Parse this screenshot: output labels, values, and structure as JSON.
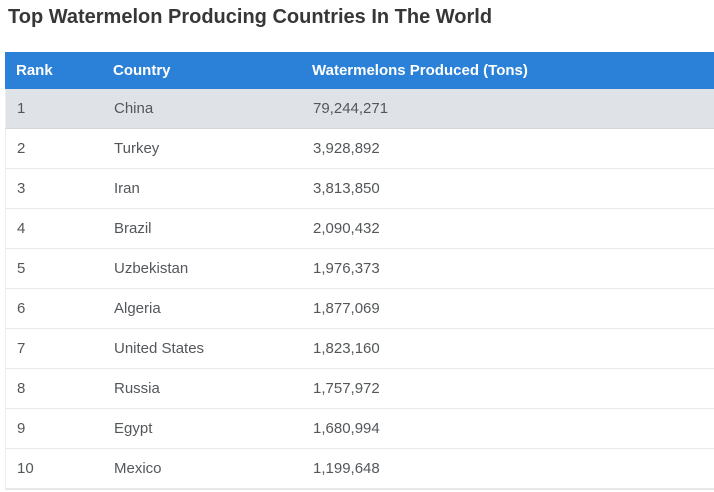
{
  "page": {
    "title": "Top Watermelon Producing Countries In The World"
  },
  "table": {
    "columns": [
      "Rank",
      "Country",
      "Watermelons Produced (Tons)"
    ],
    "rows": [
      {
        "rank": "1",
        "country": "China",
        "produced": "79,244,271",
        "highlighted": true
      },
      {
        "rank": "2",
        "country": "Turkey",
        "produced": "3,928,892",
        "highlighted": false
      },
      {
        "rank": "3",
        "country": "Iran",
        "produced": "3,813,850",
        "highlighted": false
      },
      {
        "rank": "4",
        "country": "Brazil",
        "produced": "2,090,432",
        "highlighted": false
      },
      {
        "rank": "5",
        "country": "Uzbekistan",
        "produced": "1,976,373",
        "highlighted": false
      },
      {
        "rank": "6",
        "country": "Algeria",
        "produced": "1,877,069",
        "highlighted": false
      },
      {
        "rank": "7",
        "country": "United States",
        "produced": "1,823,160",
        "highlighted": false
      },
      {
        "rank": "8",
        "country": "Russia",
        "produced": "1,757,972",
        "highlighted": false
      },
      {
        "rank": "9",
        "country": "Egypt",
        "produced": "1,680,994",
        "highlighted": false
      },
      {
        "rank": "10",
        "country": "Mexico",
        "produced": "1,199,648",
        "highlighted": false
      }
    ]
  },
  "colors": {
    "header_bg": "#2b81d8",
    "header_text": "#ffffff",
    "highlight_row_bg": "#dfe2e6",
    "row_border": "#e9eaec",
    "cell_text": "#54575a",
    "title_text": "#373737"
  },
  "chart_data": {
    "type": "table",
    "title": "Top Watermelon Producing Countries In The World",
    "columns": [
      "Rank",
      "Country",
      "Watermelons Produced (Tons)"
    ],
    "rows": [
      [
        1,
        "China",
        79244271
      ],
      [
        2,
        "Turkey",
        3928892
      ],
      [
        3,
        "Iran",
        3813850
      ],
      [
        4,
        "Brazil",
        2090432
      ],
      [
        5,
        "Uzbekistan",
        1976373
      ],
      [
        6,
        "Algeria",
        1877069
      ],
      [
        7,
        "United States",
        1823160
      ],
      [
        8,
        "Russia",
        1757972
      ],
      [
        9,
        "Egypt",
        1680994
      ],
      [
        10,
        "Mexico",
        1199648
      ]
    ]
  }
}
